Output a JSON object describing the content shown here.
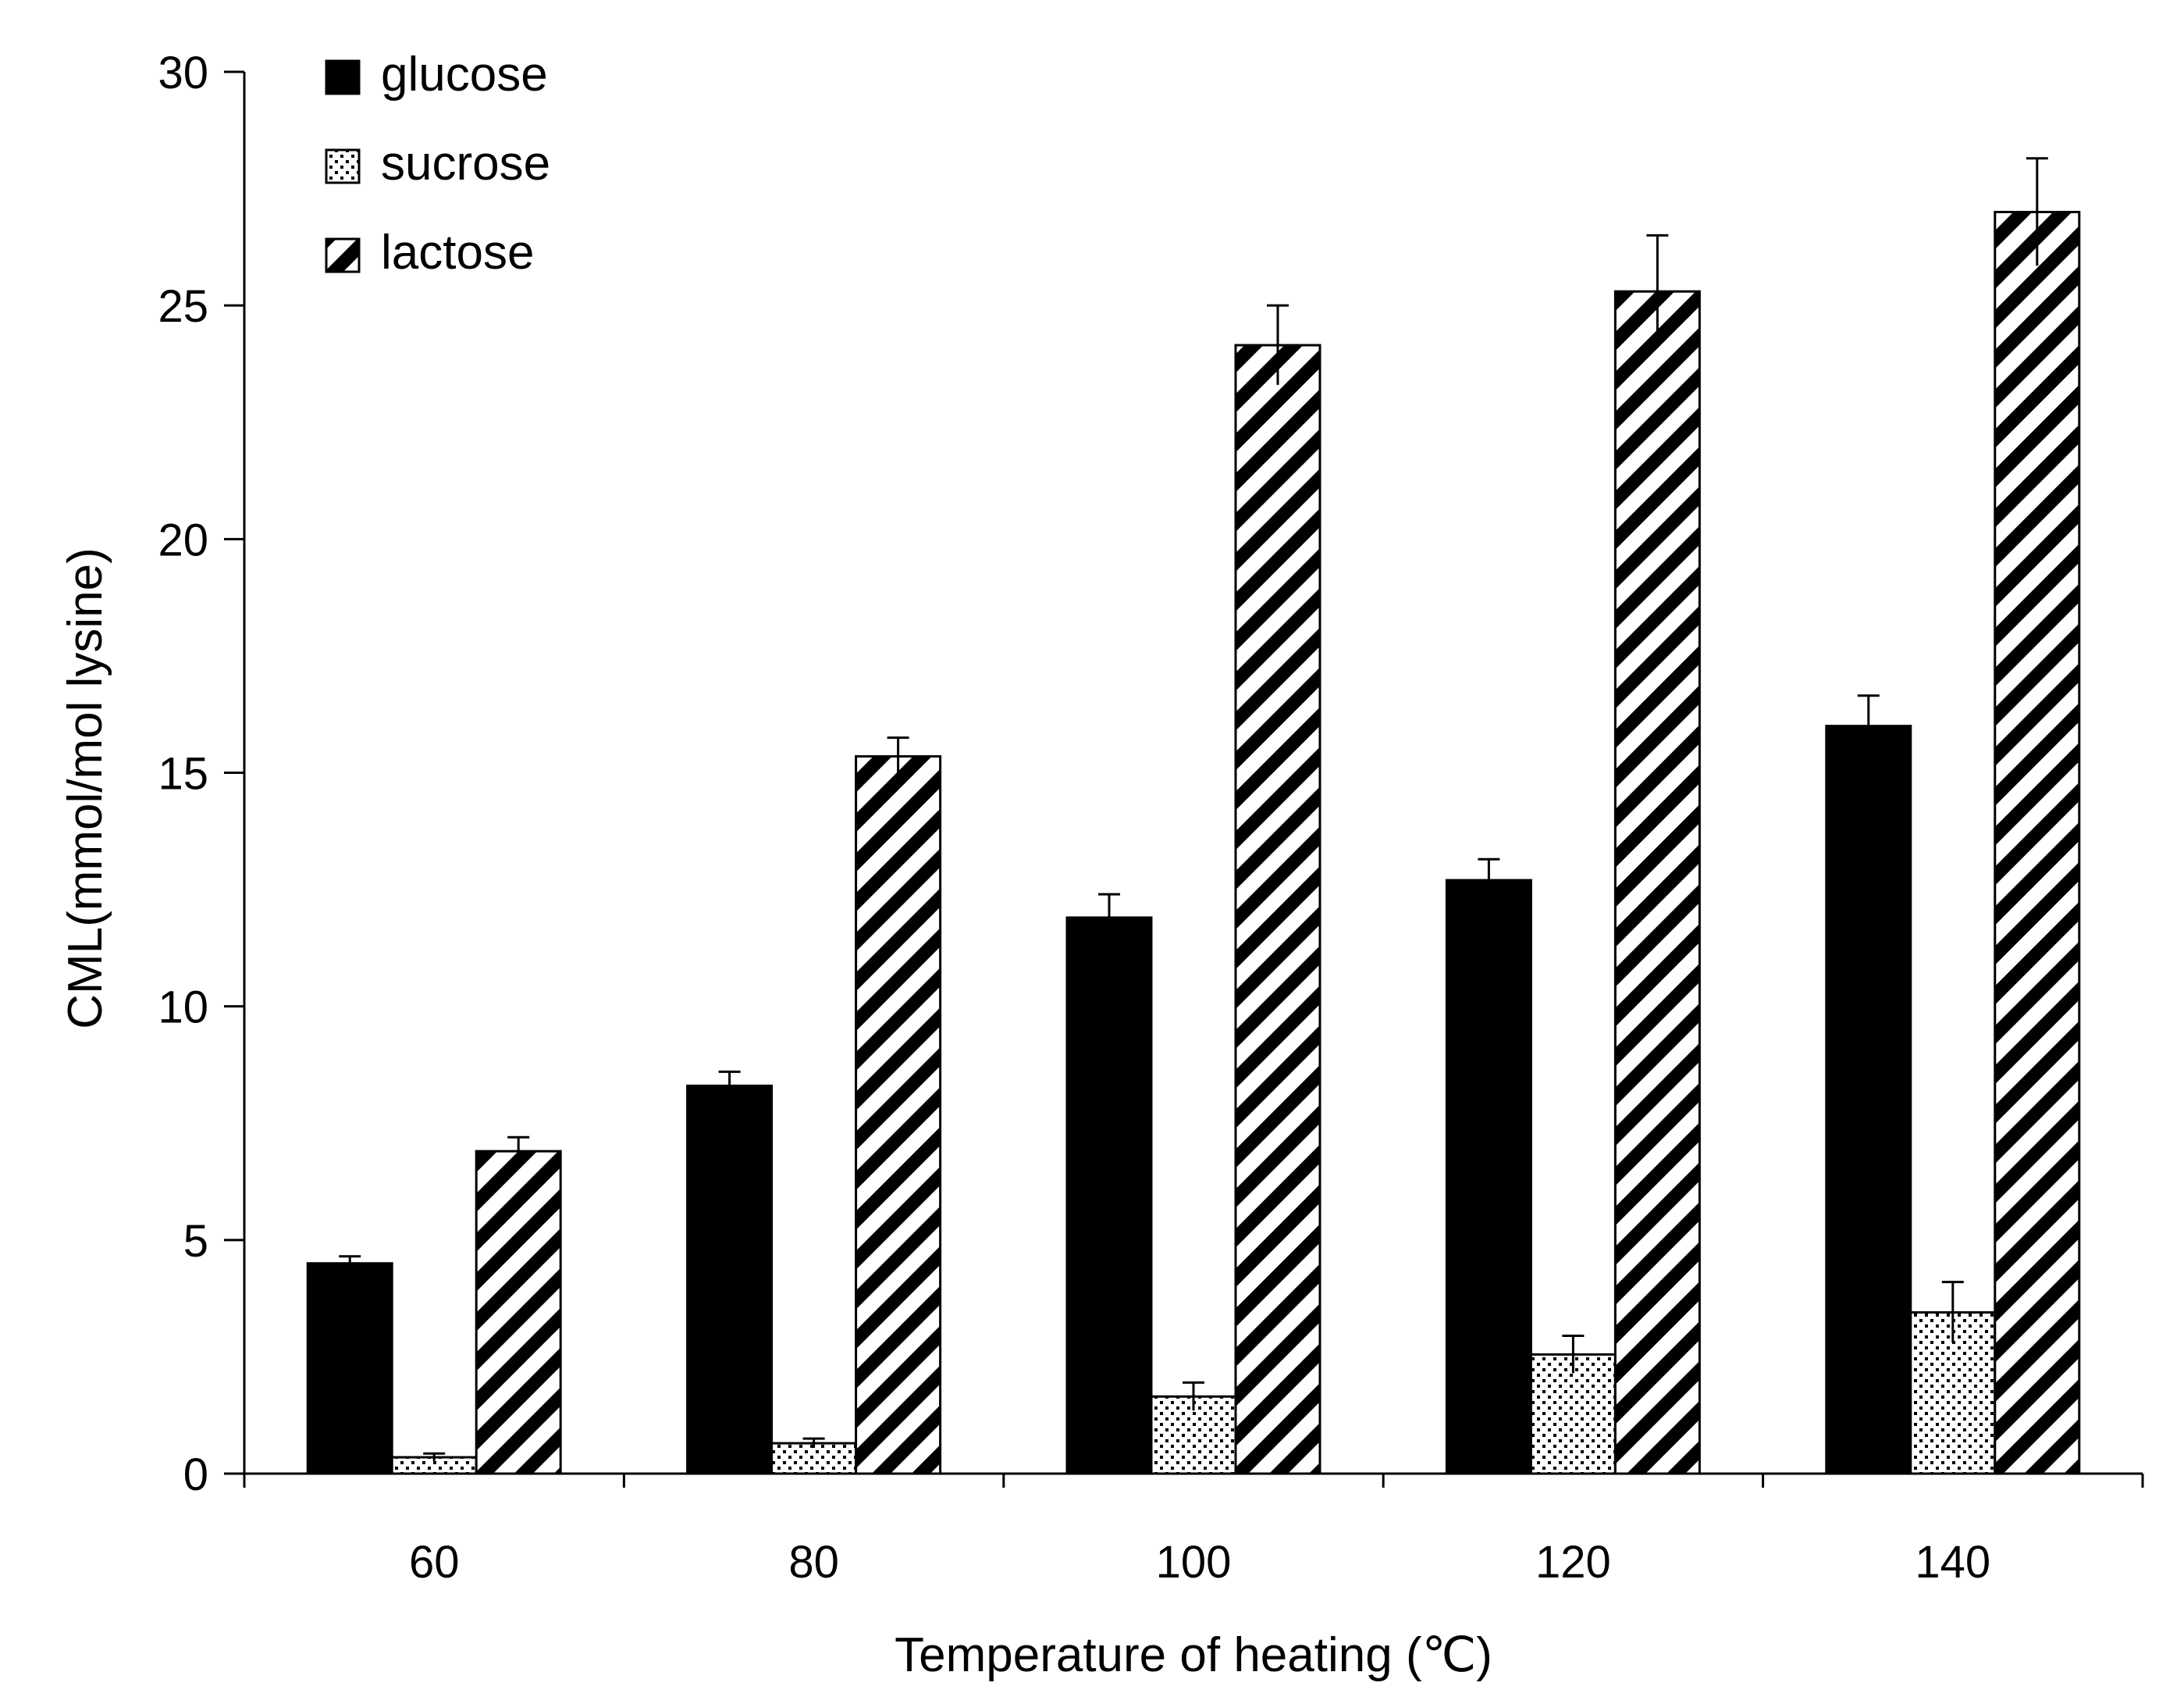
{
  "chart_data": {
    "type": "bar",
    "title": "",
    "xlabel": "Temperature of heating (℃)",
    "ylabel": "CML(mmol/mol lysine)",
    "categories": [
      "60",
      "80",
      "100",
      "120",
      "140"
    ],
    "ylim": [
      0,
      30
    ],
    "yticks": [
      "0",
      "5",
      "10",
      "15",
      "20",
      "25",
      "30"
    ],
    "grid": false,
    "legend_position": "top-left",
    "series": [
      {
        "name": "glucose",
        "pattern": "solid",
        "values": [
          4.5,
          8.3,
          11.9,
          12.7,
          16.0
        ],
        "errors": [
          0.15,
          0.3,
          0.5,
          0.45,
          0.65
        ]
      },
      {
        "name": "sucrose",
        "pattern": "dots",
        "values": [
          0.35,
          0.65,
          1.65,
          2.55,
          3.45
        ],
        "errors": [
          0.08,
          0.1,
          0.3,
          0.4,
          0.65
        ]
      },
      {
        "name": "lactose",
        "pattern": "diagonal-stripes",
        "values": [
          6.9,
          15.35,
          24.15,
          25.3,
          27.0
        ],
        "errors": [
          0.3,
          0.4,
          0.85,
          1.2,
          1.15
        ]
      }
    ]
  }
}
